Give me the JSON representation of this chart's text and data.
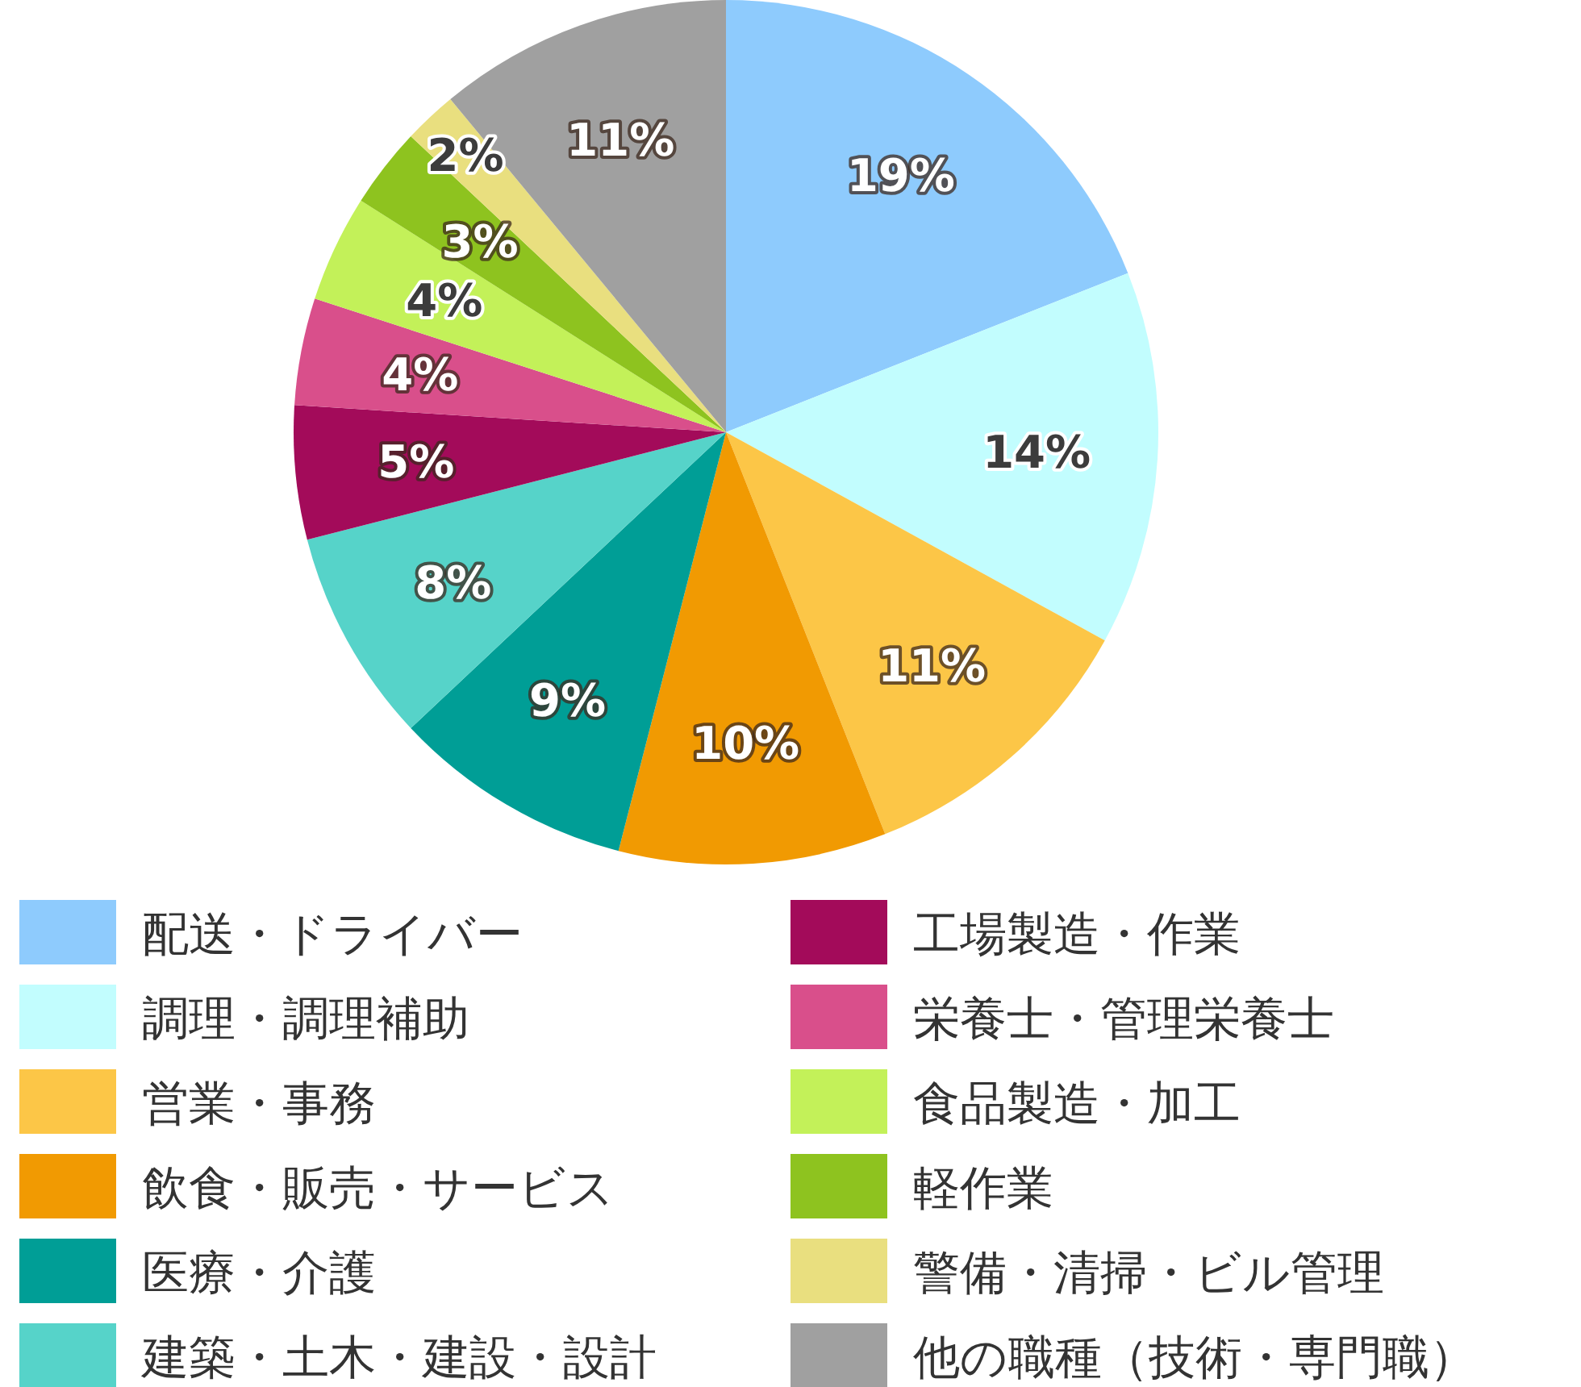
{
  "chart_data": {
    "type": "pie",
    "legend": "bottom",
    "categories": [
      "配送・ドライバー",
      "調理・調理補助",
      "営業・事務",
      "飲食・販売・サービス",
      "医療・介護",
      "建築・土木・建設・設計",
      "工場製造・作業",
      "栄養士・管理栄養士",
      "食品製造・加工",
      "軽作業",
      "警備・清掃・ビル管理",
      "他の職種（技術・専門職）"
    ],
    "values": [
      19,
      14,
      11,
      10,
      9,
      8,
      5,
      4,
      4,
      3,
      2,
      11
    ],
    "value_labels": [
      "19%",
      "14%",
      "11%",
      "10%",
      "9%",
      "8%",
      "5%",
      "4%",
      "4%",
      "3%",
      "2%",
      "11%"
    ],
    "colors": [
      "#8ecbfd",
      "#c2fdfe",
      "#fcc647",
      "#f19a02",
      "#009e96",
      "#56d3c9",
      "#a30b5a",
      "#d94f8b",
      "#c3f159",
      "#8ec31f",
      "#e9df7f",
      "#a0a0a0"
    ]
  }
}
